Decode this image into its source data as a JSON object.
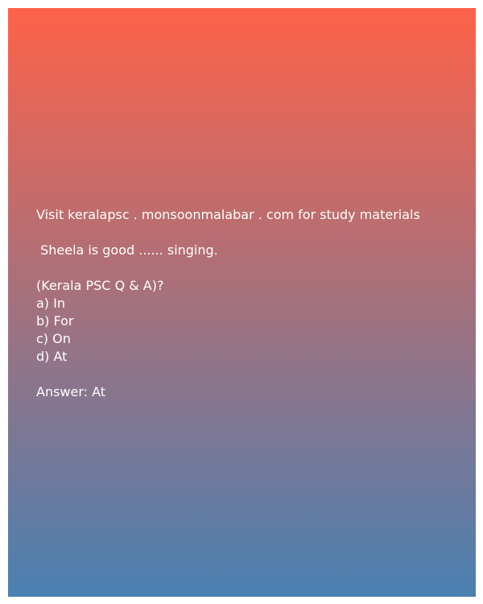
{
  "header": {
    "visit_text": "Visit keralapsc . monsoonmalabar . com for study materials"
  },
  "question": {
    "text": " Sheela is good ...... singing.",
    "source": "(Kerala PSC Q & A)?"
  },
  "options": [
    "a) In",
    "b) For",
    "c) On",
    "d) At"
  ],
  "answer": {
    "text": "Answer: At"
  },
  "colors": {
    "gradient_top": "#fe6249",
    "gradient_bottom": "#4a80b2",
    "text": "#ffffff"
  }
}
